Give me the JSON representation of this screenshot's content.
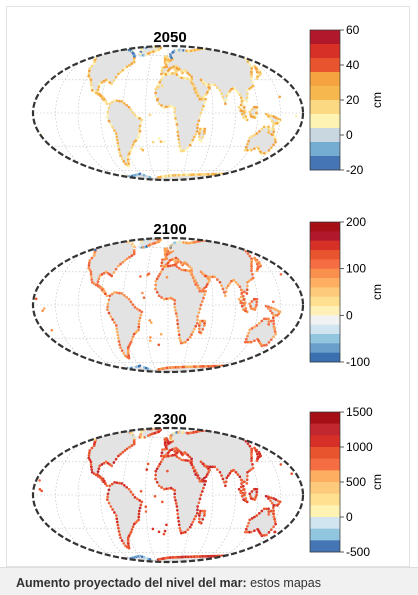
{
  "caption": {
    "bold": "Aumento proyectado del nivel del mar:",
    "rest": " estos mapas"
  },
  "colors": {
    "land": "#e3e3e3",
    "ocean": "#ffffff",
    "graticule": "#bdbdbd",
    "border": "#333333"
  },
  "chart_data": [
    {
      "type": "heatmap",
      "title": "2050",
      "unit": "cm",
      "colorbar": {
        "ticks": [
          "60",
          "40",
          "20",
          "0",
          "-20"
        ],
        "tick_values": [
          60,
          40,
          20,
          0,
          -20
        ],
        "range": [
          -20,
          60
        ],
        "colors": [
          "#b2182b",
          "#d73027",
          "#e8542e",
          "#f4a340",
          "#f7b74f",
          "#fbd882",
          "#fef3b2",
          "#c9d7e1",
          "#74add1",
          "#4575b4"
        ]
      },
      "dominant_value_range": [
        5,
        35
      ]
    },
    {
      "type": "heatmap",
      "title": "2100",
      "unit": "cm",
      "colorbar": {
        "ticks": [
          "200",
          "100",
          "0",
          "-100"
        ],
        "tick_values": [
          200,
          100,
          0,
          -100
        ],
        "range": [
          -100,
          200
        ],
        "colors": [
          "#a50f15",
          "#b2182b",
          "#d73027",
          "#e8542e",
          "#f46d43",
          "#f88f4d",
          "#fdae61",
          "#fdc97a",
          "#fee090",
          "#fff0b8",
          "#f2f2f2",
          "#d1e5f0",
          "#92c5de",
          "#6a9fcb",
          "#3a6fb0"
        ]
      },
      "dominant_value_range": [
        60,
        130
      ]
    },
    {
      "type": "heatmap",
      "title": "2300",
      "unit": "cm",
      "colorbar": {
        "ticks": [
          "1500",
          "1000",
          "500",
          "0",
          "-500"
        ],
        "tick_values": [
          1500,
          1000,
          500,
          0,
          -500
        ],
        "range": [
          -500,
          1500
        ],
        "colors": [
          "#a50f15",
          "#c2262f",
          "#d73027",
          "#e8542e",
          "#f46d43",
          "#fdae61",
          "#fdc97a",
          "#fee090",
          "#fef3b2",
          "#d1e5f0",
          "#92c5de",
          "#4575b4"
        ]
      },
      "dominant_value_range": [
        700,
        1200
      ]
    }
  ]
}
